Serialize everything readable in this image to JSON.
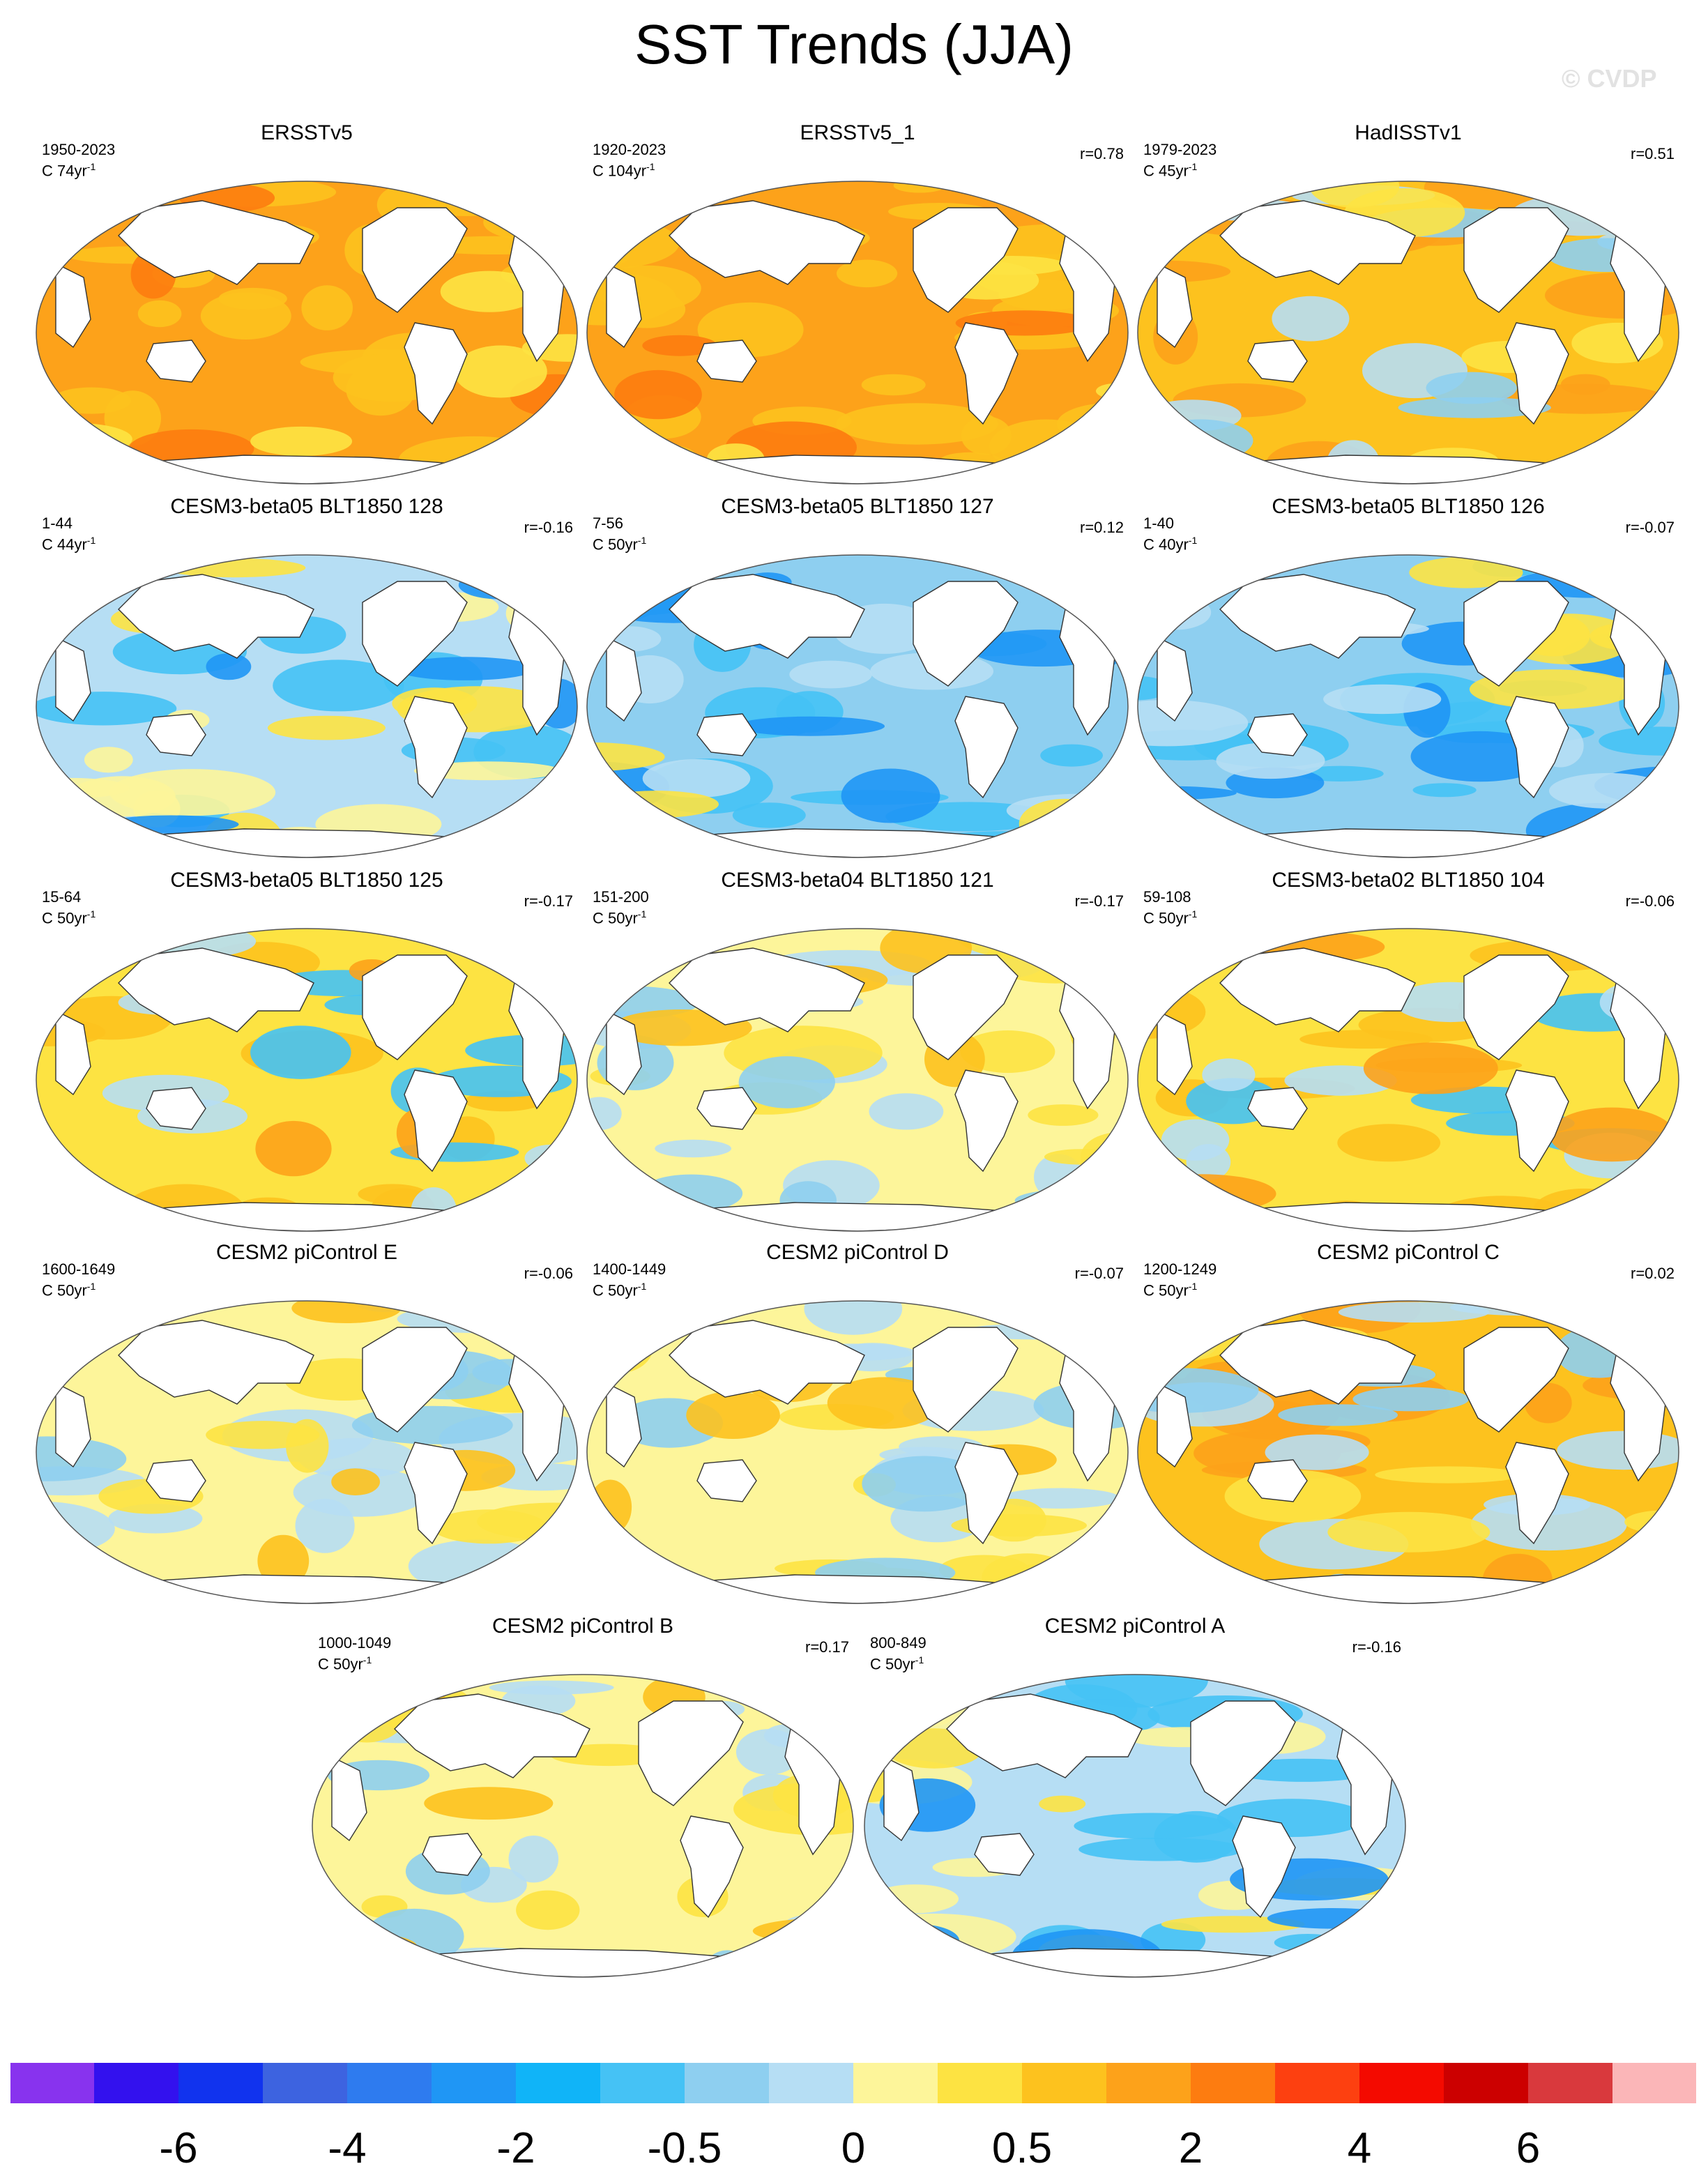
{
  "title": "SST Trends (JJA)",
  "watermark": "© CVDP",
  "chart_data": {
    "type": "heatmap",
    "title": "SST Trends (JJA)",
    "description_units": "C per period (shown per panel)",
    "panels": [
      {
        "title": "ERSSTv5",
        "period": "1950-2023",
        "units": "C 74yr",
        "unit_exp": "-1",
        "r": "",
        "pattern": "warm_strong"
      },
      {
        "title": "ERSSTv5_1",
        "period": "1920-2023",
        "units": "C 104yr",
        "unit_exp": "-1",
        "r": "r=0.78",
        "pattern": "warm_strong"
      },
      {
        "title": "HadISSTv1",
        "period": "1979-2023",
        "units": "C 45yr",
        "unit_exp": "-1",
        "r": "r=0.51",
        "pattern": "warm_mixed"
      },
      {
        "title": "CESM3-beta05 BLT1850 128",
        "period": "1-44",
        "units": "C 44yr",
        "unit_exp": "-1",
        "r": "r=-0.16",
        "pattern": "cool_mixed"
      },
      {
        "title": "CESM3-beta05 BLT1850 127",
        "period": "7-56",
        "units": "C 50yr",
        "unit_exp": "-1",
        "r": "r=0.12",
        "pattern": "cool_strong"
      },
      {
        "title": "CESM3-beta05 BLT1850 126",
        "period": "1-40",
        "units": "C 40yr",
        "unit_exp": "-1",
        "r": "r=-0.07",
        "pattern": "cool_strong"
      },
      {
        "title": "CESM3-beta05 BLT1850 125",
        "period": "15-64",
        "units": "C 50yr",
        "unit_exp": "-1",
        "r": "r=-0.17",
        "pattern": "warm_south"
      },
      {
        "title": "CESM3-beta04 BLT1850 121",
        "period": "151-200",
        "units": "C 50yr",
        "unit_exp": "-1",
        "r": "r=-0.17",
        "pattern": "mixed"
      },
      {
        "title": "CESM3-beta02 BLT1850 104",
        "period": "59-108",
        "units": "C 50yr",
        "unit_exp": "-1",
        "r": "r=-0.06",
        "pattern": "warm_south"
      },
      {
        "title": "CESM2 piControl E",
        "period": "1600-1649",
        "units": "C 50yr",
        "unit_exp": "-1",
        "r": "r=-0.06",
        "pattern": "mixed"
      },
      {
        "title": "CESM2 piControl D",
        "period": "1400-1449",
        "units": "C 50yr",
        "unit_exp": "-1",
        "r": "r=-0.07",
        "pattern": "mixed"
      },
      {
        "title": "CESM2 piControl C",
        "period": "1200-1249",
        "units": "C 50yr",
        "unit_exp": "-1",
        "r": "r=0.02",
        "pattern": "warm_mixed"
      },
      {
        "title": "CESM2 piControl B",
        "period": "1000-1049",
        "units": "C 50yr",
        "unit_exp": "-1",
        "r": "r=0.17",
        "pattern": "mixed"
      },
      {
        "title": "CESM2 piControl A",
        "period": "800-849",
        "units": "C 50yr",
        "unit_exp": "-1",
        "r": "r=-0.16",
        "pattern": "cool_mixed"
      }
    ],
    "colorbar": {
      "colors": [
        "#8833ee",
        "#3311ee",
        "#1133ee",
        "#3d63e0",
        "#2e7bef",
        "#1f96f5",
        "#10b4f8",
        "#45c2f5",
        "#8ecff0",
        "#b6def4",
        "#fdf59a",
        "#fde342",
        "#fdc21e",
        "#fda21a",
        "#fd7c10",
        "#fd4010",
        "#f40a00",
        "#cc0000",
        "#d9393d",
        "#fbb6b8"
      ],
      "labels": [
        "-6",
        "-4",
        "-2",
        "-0.5",
        "0",
        "0.5",
        "2",
        "4",
        "6"
      ]
    }
  }
}
